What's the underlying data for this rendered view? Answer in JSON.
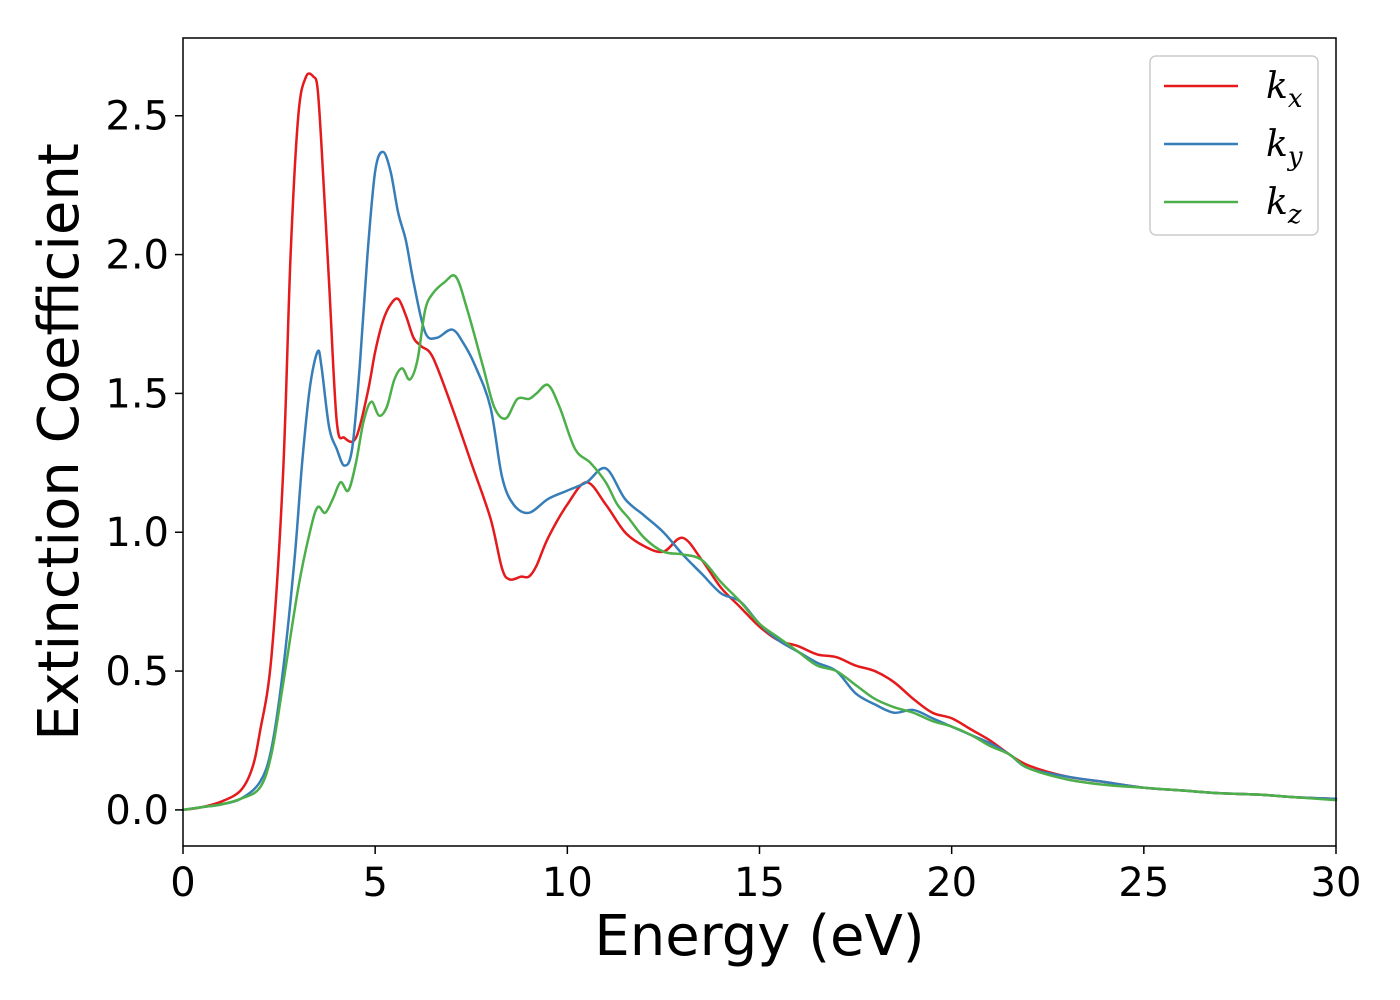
{
  "chart_data": {
    "type": "line",
    "xlabel": "Energy (eV)",
    "ylabel": "Extinction Coefficient",
    "xlim": [
      0,
      30
    ],
    "ylim": [
      -0.13,
      2.78
    ],
    "xticks": [
      "0",
      "5",
      "10",
      "15",
      "20",
      "25",
      "30"
    ],
    "yticks": [
      "0.0",
      "0.5",
      "1.0",
      "1.5",
      "2.0",
      "2.5"
    ],
    "grid": false,
    "legend_position": "top-right",
    "series": [
      {
        "name": "k_x",
        "label_main": "k",
        "label_sub": "x",
        "color": "#e41a1c",
        "x": [
          0,
          0.5,
          1.0,
          1.5,
          1.8,
          2.0,
          2.3,
          2.6,
          2.8,
          3.0,
          3.2,
          3.4,
          3.5,
          3.6,
          3.8,
          4.0,
          4.2,
          4.5,
          4.8,
          5.0,
          5.2,
          5.4,
          5.6,
          5.8,
          6.0,
          6.2,
          6.5,
          7.0,
          7.5,
          8.0,
          8.3,
          8.5,
          8.8,
          9.0,
          9.2,
          9.5,
          10.0,
          10.5,
          11.0,
          11.5,
          12.0,
          12.5,
          13.0,
          13.5,
          14.0,
          14.5,
          15.0,
          15.5,
          16.0,
          16.5,
          17.0,
          17.5,
          18.0,
          18.5,
          19.0,
          19.5,
          20.0,
          20.5,
          21.0,
          21.5,
          22.0,
          23.0,
          24.0,
          25.0,
          26.0,
          27.0,
          28.0,
          29.0,
          30.0
        ],
        "y": [
          0.0,
          0.01,
          0.03,
          0.07,
          0.15,
          0.28,
          0.55,
          1.2,
          2.0,
          2.5,
          2.64,
          2.64,
          2.6,
          2.4,
          1.9,
          1.4,
          1.34,
          1.34,
          1.5,
          1.65,
          1.76,
          1.82,
          1.84,
          1.78,
          1.7,
          1.67,
          1.63,
          1.45,
          1.25,
          1.05,
          0.87,
          0.83,
          0.84,
          0.84,
          0.88,
          0.98,
          1.1,
          1.18,
          1.1,
          1.0,
          0.95,
          0.93,
          0.98,
          0.9,
          0.8,
          0.73,
          0.66,
          0.61,
          0.59,
          0.56,
          0.55,
          0.52,
          0.5,
          0.46,
          0.4,
          0.35,
          0.33,
          0.29,
          0.25,
          0.2,
          0.16,
          0.12,
          0.1,
          0.08,
          0.07,
          0.06,
          0.055,
          0.045,
          0.04
        ]
      },
      {
        "name": "k_y",
        "label_main": "k",
        "label_sub": "y",
        "color": "#377eb8",
        "x": [
          0,
          0.5,
          1.0,
          1.5,
          2.0,
          2.3,
          2.6,
          2.9,
          3.1,
          3.3,
          3.5,
          3.6,
          3.8,
          4.0,
          4.2,
          4.4,
          4.6,
          4.8,
          5.0,
          5.2,
          5.4,
          5.6,
          5.8,
          6.0,
          6.3,
          6.6,
          7.0,
          7.3,
          7.6,
          8.0,
          8.3,
          8.6,
          9.0,
          9.5,
          10.0,
          10.5,
          11.0,
          11.5,
          12.0,
          12.5,
          13.0,
          13.5,
          14.0,
          14.5,
          15.0,
          15.5,
          16.0,
          16.5,
          17.0,
          17.5,
          18.0,
          18.5,
          19.0,
          19.5,
          20.0,
          20.5,
          21.0,
          21.5,
          22.0,
          23.0,
          24.0,
          25.0,
          26.0,
          27.0,
          28.0,
          29.0,
          30.0
        ],
        "y": [
          0.0,
          0.01,
          0.02,
          0.04,
          0.1,
          0.22,
          0.5,
          0.9,
          1.25,
          1.52,
          1.65,
          1.6,
          1.38,
          1.3,
          1.24,
          1.3,
          1.6,
          2.0,
          2.3,
          2.37,
          2.3,
          2.15,
          2.05,
          1.9,
          1.72,
          1.7,
          1.73,
          1.68,
          1.6,
          1.45,
          1.2,
          1.1,
          1.07,
          1.12,
          1.15,
          1.18,
          1.23,
          1.12,
          1.06,
          1.0,
          0.92,
          0.85,
          0.78,
          0.75,
          0.67,
          0.61,
          0.57,
          0.53,
          0.5,
          0.42,
          0.38,
          0.35,
          0.36,
          0.33,
          0.3,
          0.27,
          0.24,
          0.2,
          0.15,
          0.12,
          0.1,
          0.08,
          0.07,
          0.06,
          0.055,
          0.045,
          0.04
        ]
      },
      {
        "name": "k_z",
        "label_main": "k",
        "label_sub": "z",
        "color": "#4daf4a",
        "x": [
          0,
          0.5,
          1.0,
          1.5,
          2.0,
          2.3,
          2.6,
          3.0,
          3.3,
          3.5,
          3.7,
          3.9,
          4.1,
          4.3,
          4.5,
          4.7,
          4.9,
          5.1,
          5.3,
          5.5,
          5.7,
          5.9,
          6.1,
          6.3,
          6.5,
          6.8,
          7.1,
          7.4,
          7.8,
          8.1,
          8.4,
          8.7,
          9.0,
          9.2,
          9.5,
          9.8,
          10.2,
          10.6,
          11.0,
          11.3,
          11.6,
          12.0,
          12.5,
          13.0,
          13.5,
          14.0,
          14.5,
          15.0,
          15.5,
          16.0,
          16.5,
          17.0,
          17.5,
          18.0,
          18.5,
          19.0,
          19.5,
          20.0,
          20.5,
          21.0,
          21.5,
          22.0,
          23.0,
          24.0,
          25.0,
          26.0,
          27.0,
          28.0,
          29.0,
          30.0
        ],
        "y": [
          0.0,
          0.01,
          0.02,
          0.04,
          0.08,
          0.2,
          0.45,
          0.8,
          1.0,
          1.09,
          1.07,
          1.12,
          1.18,
          1.15,
          1.25,
          1.4,
          1.47,
          1.42,
          1.45,
          1.55,
          1.59,
          1.55,
          1.62,
          1.8,
          1.86,
          1.9,
          1.92,
          1.8,
          1.6,
          1.45,
          1.41,
          1.48,
          1.48,
          1.5,
          1.53,
          1.45,
          1.3,
          1.25,
          1.18,
          1.1,
          1.05,
          0.98,
          0.93,
          0.92,
          0.9,
          0.82,
          0.75,
          0.67,
          0.62,
          0.57,
          0.52,
          0.5,
          0.45,
          0.4,
          0.37,
          0.35,
          0.32,
          0.3,
          0.27,
          0.23,
          0.2,
          0.15,
          0.11,
          0.09,
          0.08,
          0.07,
          0.06,
          0.055,
          0.045,
          0.035
        ]
      }
    ]
  }
}
